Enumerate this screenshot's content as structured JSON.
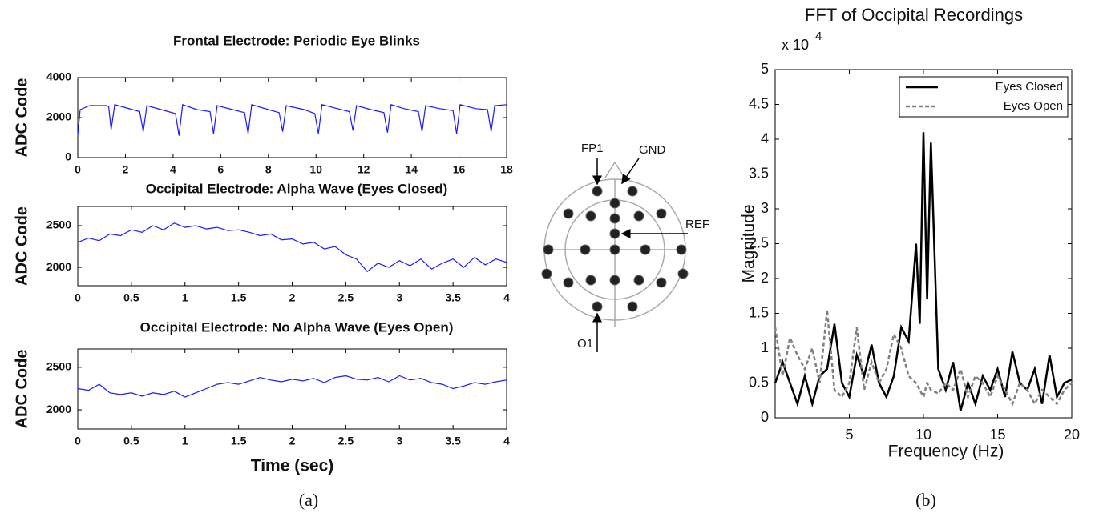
{
  "chart_data": [
    {
      "type": "line",
      "title": "Frontal Electrode: Periodic Eye Blinks",
      "ylabel": "ADC Code",
      "x": [
        0,
        0.1,
        0.5,
        1.2,
        1.3,
        1.4,
        1.55,
        2.0,
        2.6,
        2.75,
        2.9,
        3.5,
        4.1,
        4.25,
        4.4,
        5.0,
        5.55,
        5.7,
        5.85,
        6.5,
        7.0,
        7.15,
        7.3,
        8.0,
        8.45,
        8.6,
        8.75,
        9.5,
        9.95,
        10.1,
        10.25,
        10.9,
        11.4,
        11.55,
        11.7,
        12.3,
        12.85,
        13.0,
        13.15,
        13.7,
        14.3,
        14.45,
        14.6,
        15.2,
        15.75,
        15.9,
        16.05,
        16.7,
        17.2,
        17.35,
        17.5,
        18
      ],
      "series": [
        {
          "color": "#1a1aff",
          "values": [
            1100,
            2400,
            2600,
            2600,
            2550,
            1400,
            2650,
            2500,
            2300,
            1300,
            2600,
            2400,
            2200,
            1100,
            2650,
            2400,
            2300,
            1200,
            2600,
            2400,
            2250,
            1200,
            2650,
            2400,
            2250,
            1300,
            2600,
            2400,
            2200,
            1200,
            2650,
            2450,
            2300,
            1350,
            2600,
            2400,
            2250,
            1250,
            2650,
            2450,
            2300,
            1300,
            2600,
            2450,
            2350,
            1200,
            2650,
            2450,
            2400,
            1300,
            2600,
            2650
          ]
        }
      ],
      "xlim": [
        0,
        18
      ],
      "xticks": [
        0,
        2,
        4,
        6,
        8,
        10,
        12,
        14,
        16,
        18
      ],
      "ylim": [
        0,
        4000
      ],
      "yticks": [
        0,
        2000,
        4000
      ]
    },
    {
      "type": "line",
      "title": "Occipital Electrode: Alpha Wave (Eyes Closed)",
      "ylabel": "ADC Code",
      "x": [
        0,
        0.1,
        0.2,
        0.3,
        0.4,
        0.5,
        0.6,
        0.7,
        0.8,
        0.9,
        1.0,
        1.1,
        1.2,
        1.3,
        1.4,
        1.5,
        1.6,
        1.7,
        1.8,
        1.9,
        2.0,
        2.1,
        2.2,
        2.3,
        2.4,
        2.5,
        2.6,
        2.7,
        2.8,
        2.9,
        3.0,
        3.1,
        3.2,
        3.3,
        3.4,
        3.5,
        3.6,
        3.7,
        3.8,
        3.9,
        4.0
      ],
      "series": [
        {
          "color": "#1a1aff",
          "values": [
            2300,
            2350,
            2320,
            2400,
            2380,
            2450,
            2420,
            2500,
            2450,
            2530,
            2480,
            2500,
            2460,
            2480,
            2440,
            2450,
            2420,
            2380,
            2400,
            2330,
            2340,
            2280,
            2300,
            2220,
            2250,
            2150,
            2100,
            1950,
            2050,
            2000,
            2080,
            2020,
            2100,
            1980,
            2050,
            2100,
            2000,
            2120,
            2030,
            2100,
            2060
          ]
        }
      ],
      "xlim": [
        0,
        4
      ],
      "xticks": [
        0,
        0.5,
        1,
        1.5,
        2,
        2.5,
        3,
        3.5,
        4
      ],
      "ylim": [
        1780,
        2730
      ],
      "yticks": [
        2000,
        2500
      ]
    },
    {
      "type": "line",
      "title": "Occipital Electrode: No Alpha Wave (Eyes Open)",
      "ylabel": "ADC Code",
      "xlabel": "Time (sec)",
      "x": [
        0,
        0.1,
        0.2,
        0.3,
        0.4,
        0.5,
        0.6,
        0.7,
        0.8,
        0.9,
        1.0,
        1.1,
        1.2,
        1.3,
        1.4,
        1.5,
        1.6,
        1.7,
        1.8,
        1.9,
        2.0,
        2.1,
        2.2,
        2.3,
        2.4,
        2.5,
        2.6,
        2.7,
        2.8,
        2.9,
        3.0,
        3.1,
        3.2,
        3.3,
        3.4,
        3.5,
        3.6,
        3.7,
        3.8,
        3.9,
        4.0
      ],
      "series": [
        {
          "color": "#1a1aff",
          "values": [
            2250,
            2230,
            2300,
            2200,
            2180,
            2200,
            2160,
            2200,
            2180,
            2220,
            2150,
            2200,
            2250,
            2300,
            2320,
            2300,
            2340,
            2380,
            2350,
            2330,
            2360,
            2340,
            2370,
            2320,
            2380,
            2400,
            2360,
            2350,
            2380,
            2330,
            2400,
            2350,
            2370,
            2320,
            2300,
            2250,
            2280,
            2320,
            2300,
            2330,
            2350
          ]
        }
      ],
      "xlim": [
        0,
        4
      ],
      "xticks": [
        0,
        0.5,
        1,
        1.5,
        2,
        2.5,
        3,
        3.5,
        4
      ],
      "ylim": [
        1775,
        2715
      ],
      "yticks": [
        2000,
        2500
      ]
    },
    {
      "type": "line",
      "title": "FFT of Occipital Recordings",
      "multiplier": {
        "base": "x 10",
        "exponent": "4"
      },
      "ylabel": "Magnitude",
      "xlabel": "Frequency (Hz)",
      "legend": "upper right",
      "x": [
        0,
        0.5,
        1,
        1.5,
        2,
        2.5,
        3,
        3.5,
        4,
        4.5,
        5,
        5.5,
        6,
        6.5,
        7,
        7.5,
        8,
        8.5,
        9,
        9.5,
        9.75,
        10,
        10.25,
        10.5,
        11,
        11.5,
        12,
        12.5,
        13,
        13.5,
        14,
        14.5,
        15,
        15.5,
        16,
        16.5,
        17,
        17.5,
        18,
        18.5,
        19,
        19.5,
        20
      ],
      "series": [
        {
          "name": "Eyes Closed",
          "color": "#000000",
          "linestyle": "solid",
          "values": [
            0.5,
            0.8,
            0.5,
            0.2,
            0.6,
            0.2,
            0.6,
            0.7,
            1.35,
            0.5,
            0.3,
            0.9,
            0.6,
            1.05,
            0.5,
            0.3,
            0.6,
            1.3,
            1.1,
            2.5,
            1.35,
            4.1,
            1.7,
            3.95,
            0.7,
            0.4,
            0.8,
            0.1,
            0.5,
            0.2,
            0.6,
            0.4,
            0.7,
            0.3,
            0.95,
            0.5,
            0.4,
            0.7,
            0.2,
            0.9,
            0.3,
            0.5,
            0.55
          ]
        },
        {
          "name": "Eyes Open",
          "color": "#808080",
          "linestyle": "dashed",
          "values": [
            1.3,
            0.6,
            1.15,
            0.9,
            0.7,
            1.0,
            0.5,
            1.55,
            0.4,
            0.3,
            0.5,
            1.3,
            0.4,
            0.8,
            0.5,
            0.7,
            1.2,
            1.0,
            0.6,
            0.5,
            0.4,
            0.3,
            0.5,
            0.4,
            0.35,
            0.5,
            0.4,
            0.7,
            0.3,
            0.6,
            0.5,
            0.3,
            0.6,
            0.4,
            0.2,
            0.5,
            0.4,
            0.2,
            0.4,
            0.3,
            0.2,
            0.4,
            0.5
          ]
        }
      ],
      "xlim": [
        0,
        20
      ],
      "xticks": [
        5,
        10,
        15,
        20
      ],
      "ylim": [
        0,
        5
      ],
      "yticks": [
        0,
        0.5,
        1,
        1.5,
        2,
        2.5,
        3,
        3.5,
        4,
        4.5,
        5
      ]
    }
  ],
  "diagram": {
    "labels": [
      "FP1",
      "GND",
      "REF",
      "O1"
    ]
  },
  "captions": [
    "(a)",
    "(b)"
  ]
}
